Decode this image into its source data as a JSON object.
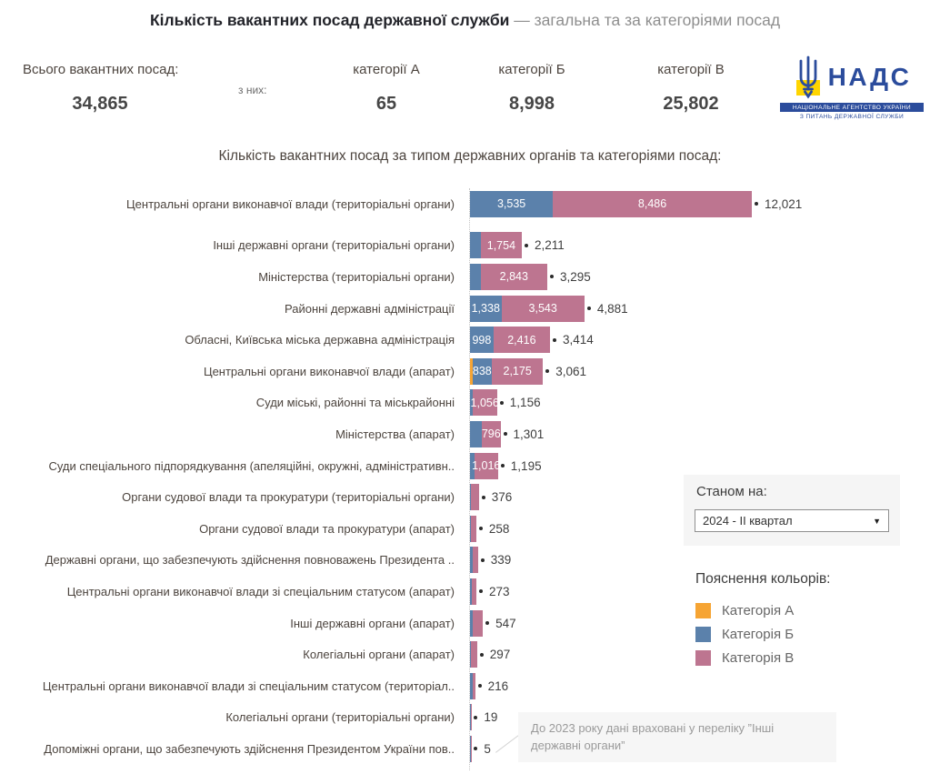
{
  "title": {
    "main": "Кількість вакантних посад державної служби",
    "sub": " — загальна та за категоріями посад"
  },
  "summary": {
    "total_label": "Всього вакантних посад:",
    "total_value": "34,865",
    "of_them_label": "з них:",
    "categories": [
      {
        "label": "категорії А",
        "value": "65"
      },
      {
        "label": "категорії Б",
        "value": "8,998"
      },
      {
        "label": "категорії В",
        "value": "25,802"
      }
    ]
  },
  "logo": {
    "acronym": "НАДС",
    "line1": "НАЦІОНАЛЬНЕ АГЕНТСТВО УКРАЇНИ",
    "line2": "З ПИТАНЬ ДЕРЖАВНОЇ СЛУЖБИ",
    "blue": "#2b4c9c",
    "yellow": "#ffd500"
  },
  "filter": {
    "label": "Станом на:",
    "selected": "2024 - II квартал"
  },
  "legend": {
    "title": "Пояснення кольорів:",
    "items": [
      {
        "label": "Категорія А",
        "color": "#f6a433"
      },
      {
        "label": "Категорія Б",
        "color": "#5b81ab"
      },
      {
        "label": "Категорія В",
        "color": "#bd7590"
      }
    ]
  },
  "note": {
    "text": "До 2023 року дані враховані у переліку ”Інші державні органи”"
  },
  "icons": {
    "dropdown_caret": "▼"
  },
  "chart_data": {
    "type": "bar",
    "orientation": "horizontal",
    "stacked": true,
    "title": "Кількість вакантних посад за типом державних органів та категоріями посад:",
    "legend_position": "right",
    "x_max": 12021,
    "series_names": [
      "Категорія А",
      "Категорія Б",
      "Категорія В"
    ],
    "colors": {
      "a": "#f6a433",
      "b": "#5b81ab",
      "v": "#bd7590"
    },
    "note": "segment values without printed labels are estimated from bar proportions",
    "rows": [
      {
        "label": "Центральні органи виконавчої влади (територіальні органи)",
        "a": 0,
        "b": 3535,
        "v": 8486,
        "total": 12021,
        "b_label": "3,535",
        "v_label": "8,486",
        "total_label": "12,021"
      },
      {
        "label": "Інші державні органи (територіальні органи)",
        "a": 0,
        "b": 457,
        "v": 1754,
        "total": 2211,
        "b_label": "",
        "v_label": "1,754",
        "total_label": "2,211"
      },
      {
        "label": "Міністерства (територіальні органи)",
        "a": 0,
        "b": 452,
        "v": 2843,
        "total": 3295,
        "b_label": "",
        "v_label": "2,843",
        "total_label": "3,295"
      },
      {
        "label": "Районні державні адміністрації",
        "a": 0,
        "b": 1338,
        "v": 3543,
        "total": 4881,
        "b_label": "1,338",
        "v_label": "3,543",
        "total_label": "4,881"
      },
      {
        "label": "Обласні, Київська міська державна адміністрація",
        "a": 0,
        "b": 998,
        "v": 2416,
        "total": 3414,
        "b_label": "998",
        "v_label": "2,416",
        "total_label": "3,414"
      },
      {
        "label": "Центральні органи виконавчої влади (апарат)",
        "a": 48,
        "b": 838,
        "v": 2175,
        "total": 3061,
        "b_label": "838",
        "v_label": "2,175",
        "total_label": "3,061"
      },
      {
        "label": "Суди міські, районні та міськрайонні",
        "a": 0,
        "b": 100,
        "v": 1056,
        "total": 1156,
        "b_label": "",
        "v_label": "1,056",
        "total_label": "1,156"
      },
      {
        "label": "Міністерства (апарат)",
        "a": 0,
        "b": 505,
        "v": 796,
        "total": 1301,
        "b_label": "",
        "v_label": "796",
        "total_label": "1,301"
      },
      {
        "label": "Суди спеціального підпорядкування (апеляційні, окружні, адміністративн..",
        "a": 0,
        "b": 179,
        "v": 1016,
        "total": 1195,
        "b_label": "",
        "v_label": "1,016",
        "total_label": "1,195"
      },
      {
        "label": "Органи судової влади та прокуратури (територіальні органи)",
        "a": 0,
        "b": 30,
        "v": 346,
        "total": 376,
        "b_label": "",
        "v_label": "",
        "total_label": "376"
      },
      {
        "label": "Органи судової влади та прокуратури (апарат)",
        "a": 0,
        "b": 20,
        "v": 238,
        "total": 258,
        "b_label": "",
        "v_label": "",
        "total_label": "258"
      },
      {
        "label": "Державні органи, що забезпечують здійснення повноважень Президента ..",
        "a": 0,
        "b": 100,
        "v": 239,
        "total": 339,
        "b_label": "",
        "v_label": "",
        "total_label": "339"
      },
      {
        "label": "Центральні органи виконавчої влади зі спеціальним статусом (апарат)",
        "a": 0,
        "b": 80,
        "v": 193,
        "total": 273,
        "b_label": "",
        "v_label": "",
        "total_label": "273"
      },
      {
        "label": "Інші державні органи (апарат)",
        "a": 0,
        "b": 120,
        "v": 427,
        "total": 547,
        "b_label": "",
        "v_label": "",
        "total_label": "547"
      },
      {
        "label": "Колегіальні органи (апарат)",
        "a": 0,
        "b": 25,
        "v": 272,
        "total": 297,
        "b_label": "",
        "v_label": "",
        "total_label": "297"
      },
      {
        "label": "Центральні органи виконавчої влади зі спеціальним статусом (територіал..",
        "a": 0,
        "b": 120,
        "v": 96,
        "total": 216,
        "b_label": "",
        "v_label": "",
        "total_label": "216"
      },
      {
        "label": "Колегіальні органи (територіальні органи)",
        "a": 0,
        "b": 5,
        "v": 14,
        "total": 19,
        "b_label": "",
        "v_label": "",
        "total_label": "19"
      },
      {
        "label": "Допоміжні органи, що забезпечують здійснення Президентом України пов..",
        "a": 0,
        "b": 2,
        "v": 3,
        "total": 5,
        "b_label": "",
        "v_label": "",
        "total_label": "5"
      }
    ]
  }
}
